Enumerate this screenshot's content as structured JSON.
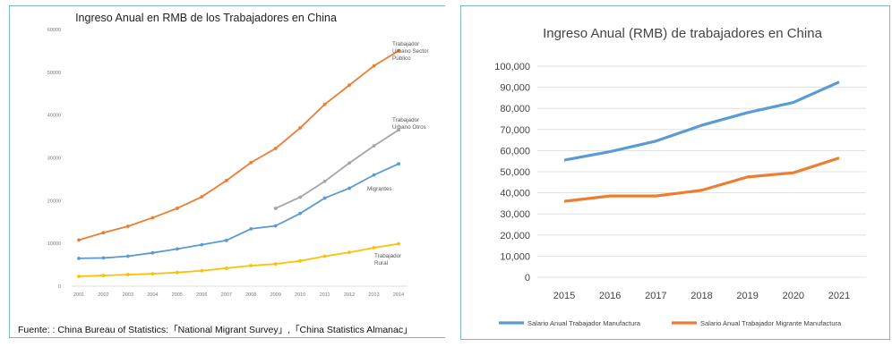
{
  "chart_data": [
    {
      "type": "line",
      "title": "Ingreso Anual en RMB de los Trabajadores en China",
      "x": [
        2001,
        2002,
        2003,
        2004,
        2005,
        2006,
        2007,
        2008,
        2009,
        2010,
        2011,
        2012,
        2013,
        2014
      ],
      "ylim": [
        0,
        60000
      ],
      "yticks": [
        "60000",
        "50000",
        "40000",
        "30000",
        "20000",
        "10000",
        "0"
      ],
      "series": [
        {
          "name": "Trabajador Urbano Sector Público",
          "color": "#ed7d31",
          "values": [
            10800,
            12500,
            14000,
            16000,
            18200,
            20900,
            24700,
            28900,
            32200,
            37000,
            42500,
            47000,
            51500,
            55000
          ]
        },
        {
          "name": "Trabajador Urbano Otros",
          "color": "#a5a5a5",
          "values": [
            null,
            null,
            null,
            null,
            null,
            null,
            null,
            null,
            18200,
            20800,
            24500,
            28800,
            32800,
            36500
          ]
        },
        {
          "name": "Migrantes",
          "color": "#5b9bd5",
          "values": [
            6500,
            6600,
            7000,
            7800,
            8700,
            9700,
            10700,
            13400,
            14100,
            17000,
            20600,
            22900,
            26000,
            28600
          ]
        },
        {
          "name": "Trabajador Rural",
          "color": "#ffc000",
          "values": [
            2300,
            2500,
            2700,
            2900,
            3200,
            3600,
            4200,
            4800,
            5200,
            5900,
            7000,
            7900,
            9000,
            9900
          ]
        }
      ],
      "labels": [
        {
          "series": 0,
          "lines": [
            "Trabajador",
            "Urbano Sector",
            "Público"
          ]
        },
        {
          "series": 1,
          "lines": [
            "Trabajador",
            "Urbano Otros"
          ]
        },
        {
          "series": 2,
          "lines": [
            "Migrantes"
          ]
        },
        {
          "series": 3,
          "lines": [
            "Trabajador",
            "Rural"
          ]
        }
      ],
      "grid": false,
      "source_label": "Fuente:",
      "source_text": ": China Bureau of Statistics:「National Migrant Survey」,「China Statistics Almanac」"
    },
    {
      "type": "line",
      "title": "Ingreso Anual (RMB) de trabajadores en China",
      "x": [
        2015,
        2016,
        2017,
        2018,
        2019,
        2020,
        2021
      ],
      "ylim": [
        0,
        100000
      ],
      "yticks": [
        "0",
        "10,000",
        "20,000",
        "30,000",
        "40,000",
        "50,000",
        "60,000",
        "70,000",
        "80,000",
        "90,000",
        "100,000"
      ],
      "series": [
        {
          "name": "Salario Anual Trabajador Manufactura",
          "color": "#5b9bd5",
          "values": [
            55500,
            59500,
            64500,
            72000,
            78000,
            82800,
            92500
          ]
        },
        {
          "name": "Salario Anual Trabajador Migrante Manufactura",
          "color": "#ed7d31",
          "values": [
            36000,
            38500,
            38500,
            41200,
            47500,
            49500,
            56500
          ]
        }
      ],
      "grid": true,
      "legend": "bottom"
    }
  ]
}
